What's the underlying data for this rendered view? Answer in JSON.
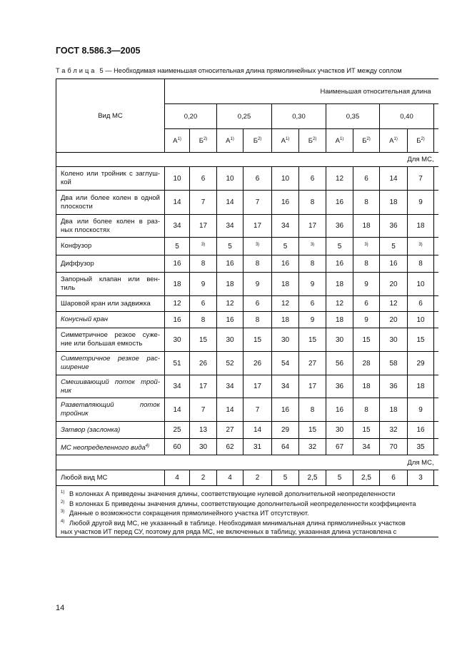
{
  "header": {
    "title": "ГОСТ 8.586.3—2005"
  },
  "caption": {
    "label": "Таблица",
    "text": "5 — Необходимая наименьшая относительная длина прямолинейных участков ИТ между соплом"
  },
  "table": {
    "row_header": "Вид МС",
    "group_header": "Наименьшая относительная длина",
    "ratios": [
      "0,20",
      "0,25",
      "0,30",
      "0,35",
      "0,40"
    ],
    "sub_headers": [
      {
        "letter": "А",
        "ref": "1)"
      },
      {
        "letter": "Б",
        "ref": "2)"
      },
      {
        "letter": "А",
        "ref": "1)"
      },
      {
        "letter": "Б",
        "ref": "2)"
      },
      {
        "letter": "А",
        "ref": "1)"
      },
      {
        "letter": "Б",
        "ref": "2)"
      },
      {
        "letter": "А",
        "ref": "1)"
      },
      {
        "letter": "Б",
        "ref": "2)"
      },
      {
        "letter": "А",
        "ref": "1)"
      },
      {
        "letter": "Б",
        "ref": "2)"
      }
    ],
    "sections": [
      {
        "title": "Для МС,",
        "rows": [
          {
            "name": [
              "Колено или тройник с заглуш-",
              "кой"
            ],
            "values": [
              "10",
              "6",
              "10",
              "6",
              "10",
              "6",
              "12",
              "6",
              "14",
              "7"
            ]
          },
          {
            "name": [
              "Два или более колен в одной",
              "плоскости"
            ],
            "values": [
              "14",
              "7",
              "14",
              "7",
              "16",
              "8",
              "16",
              "8",
              "18",
              "9"
            ]
          },
          {
            "name": [
              "Два или более колен в раз-",
              "ных плоскостях"
            ],
            "values": [
              "34",
              "17",
              "34",
              "17",
              "34",
              "17",
              "36",
              "18",
              "36",
              "18"
            ]
          },
          {
            "name": [
              "Конфузор"
            ],
            "values": [
              "5",
              "3)",
              "5",
              "3)",
              "5",
              "3)",
              "5",
              "3)",
              "5",
              "3)"
            ]
          },
          {
            "name": [
              "Диффузор"
            ],
            "values": [
              "16",
              "8",
              "16",
              "8",
              "16",
              "8",
              "16",
              "8",
              "16",
              "8"
            ]
          },
          {
            "name": [
              "Запорный клапан или вен-",
              "тиль"
            ],
            "values": [
              "18",
              "9",
              "18",
              "9",
              "18",
              "9",
              "18",
              "9",
              "20",
              "10"
            ]
          },
          {
            "name": [
              "Шаровой кран или задвижка"
            ],
            "values": [
              "12",
              "6",
              "12",
              "6",
              "12",
              "6",
              "12",
              "6",
              "12",
              "6"
            ]
          },
          {
            "name": [
              "Конусный кран"
            ],
            "italic": true,
            "values": [
              "16",
              "8",
              "16",
              "8",
              "18",
              "9",
              "18",
              "9",
              "20",
              "10"
            ]
          },
          {
            "name": [
              "Симметричное резкое суже-",
              "ние или большая емкость"
            ],
            "values": [
              "30",
              "15",
              "30",
              "15",
              "30",
              "15",
              "30",
              "15",
              "30",
              "15"
            ]
          },
          {
            "name": [
              "Симметричное резкое рас-",
              "ширение"
            ],
            "italic": true,
            "values": [
              "51",
              "26",
              "52",
              "26",
              "54",
              "27",
              "56",
              "28",
              "58",
              "29"
            ]
          },
          {
            "name": [
              "Смешивающий поток трой-",
              "ник"
            ],
            "italic": true,
            "values": [
              "34",
              "17",
              "34",
              "17",
              "34",
              "17",
              "36",
              "18",
              "36",
              "18"
            ]
          },
          {
            "name": [
              "Разветвляющий поток",
              "тройник"
            ],
            "italic": true,
            "values": [
              "14",
              "7",
              "14",
              "7",
              "16",
              "8",
              "16",
              "8",
              "18",
              "9"
            ]
          },
          {
            "name": [
              "Затвор (заслонка)"
            ],
            "italic": true,
            "values": [
              "25",
              "13",
              "27",
              "14",
              "29",
              "15",
              "30",
              "15",
              "32",
              "16"
            ]
          },
          {
            "name": [
              "МС неопределенного вида"
            ],
            "ref": "4)",
            "italic": true,
            "values": [
              "60",
              "30",
              "62",
              "31",
              "64",
              "32",
              "67",
              "34",
              "70",
              "35"
            ]
          }
        ]
      },
      {
        "title": "Для МС,",
        "rows": [
          {
            "name": [
              "Любой вид МС"
            ],
            "values": [
              "4",
              "2",
              "4",
              "2",
              "5",
              "2,5",
              "5",
              "2,5",
              "6",
              "3"
            ]
          }
        ]
      }
    ],
    "notes": [
      {
        "ref": "1)",
        "lines": [
          "В колонках А приведены значения длины, соответствующие нулевой дополнительной неопределенности"
        ]
      },
      {
        "ref": "2)",
        "lines": [
          "В колонках Б приведены значения длины, соответствующие дополнительной неопределенности коэффициента"
        ]
      },
      {
        "ref": "3)",
        "lines": [
          "Данные о возможности сокращения прямолинейного участка ИТ отсутствуют."
        ]
      },
      {
        "ref": "4)",
        "lines": [
          "Любой другой вид МС, не указанный в таблице. Необходимая минимальная длина прямолинейных участков",
          "ных участков ИТ перед СУ, поэтому для ряда МС, не включенных в таблицу, указанная длина установлена с"
        ]
      }
    ]
  },
  "page_number": "14"
}
